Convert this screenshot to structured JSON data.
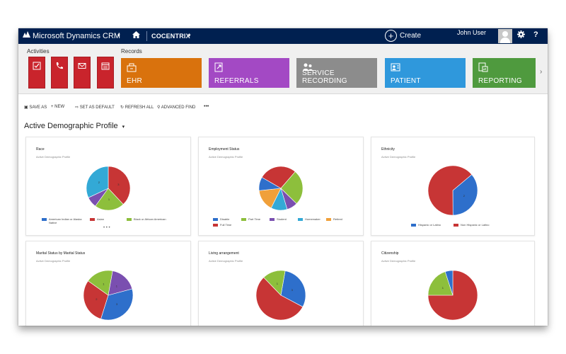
{
  "header": {
    "app_title": "Microsoft Dynamics CRM",
    "org": "COCENTRIX",
    "create_label": "Create",
    "user_name": "John User",
    "help_label": "?"
  },
  "nav": {
    "activities_label": "Activities",
    "records_label": "Records",
    "activity_icons": [
      "task-icon",
      "phone-icon",
      "email-icon",
      "appointment-icon"
    ],
    "tiles": [
      {
        "label": "EHR",
        "color": "#d9720d",
        "icon": "ehr-icon"
      },
      {
        "label": "REFERRALS",
        "color": "#a349c4",
        "icon": "referral-icon"
      },
      {
        "label": "SERVICE RECORDING",
        "color": "#8c8c8c",
        "icon": "service-recording-icon"
      },
      {
        "label": "PATIENT",
        "color": "#2f98dc",
        "icon": "patient-icon"
      },
      {
        "label": "REPORTING",
        "color": "#4f9a3e",
        "icon": "reporting-icon"
      }
    ]
  },
  "commands": {
    "save_as": "SAVE AS",
    "new": "NEW",
    "set_default": "SET AS DEFAULT",
    "refresh_all": "REFRESH ALL",
    "advanced_find": "ADVANCED FIND",
    "more": "•••"
  },
  "page": {
    "title": "Active Demographic Profile",
    "chevron": "▾"
  },
  "cards": [
    {
      "title": "Race",
      "subtitle": "Active Demographic Profile",
      "legend": [
        "American Indian or Alaska Native",
        "Asian",
        "Black or African American"
      ],
      "legend_colors": [
        "#2e6fcb",
        "#c73535",
        "#8dbf3c"
      ],
      "more": "• • •"
    },
    {
      "title": "Employment Status",
      "subtitle": "Active Demographic Profile",
      "legend": [
        "Disable",
        "Part Time",
        "Student",
        "Homemaker",
        "Retired",
        "Full Time"
      ],
      "legend_colors": [
        "#2e6fcb",
        "#8dbf3c",
        "#7a4fb0",
        "#33a9d6",
        "#f0a03a",
        "#c73535"
      ]
    },
    {
      "title": "Ethnicity",
      "subtitle": "Active Demographic Profile",
      "legend": [
        "Hispanic or Latino",
        "Non Hispanic or Latino"
      ],
      "legend_colors": [
        "#2e6fcb",
        "#c73535"
      ]
    },
    {
      "title": "Marital Status by Marital Status",
      "subtitle": "Active Demographic Profile"
    },
    {
      "title": "Living arrangement",
      "subtitle": "Active Demographic Profile"
    },
    {
      "title": "Citizenship",
      "subtitle": "Active Demographic Profile"
    }
  ],
  "chart_data": [
    {
      "type": "pie",
      "title": "Race",
      "categories": [
        "Asian",
        "Black or African American",
        "Purple category",
        "Cyan category"
      ],
      "values": [
        38,
        22,
        8,
        32
      ],
      "colors": [
        "#c73535",
        "#8dbf3c",
        "#7a4fb0",
        "#33a9d6"
      ],
      "data_labels": [
        "3",
        "1",
        "",
        "2"
      ]
    },
    {
      "type": "pie",
      "title": "Employment Status",
      "categories": [
        "Full Time",
        "Part Time",
        "Student",
        "Homemaker",
        "Retired",
        "Disable"
      ],
      "values": [
        28,
        26,
        8,
        12,
        16,
        10
      ],
      "colors": [
        "#c73535",
        "#8dbf3c",
        "#7a4fb0",
        "#33a9d6",
        "#f0a03a",
        "#2e6fcb"
      ],
      "data_labels": [
        "",
        "",
        "",
        "",
        "",
        ""
      ]
    },
    {
      "type": "pie",
      "title": "Ethnicity",
      "categories": [
        "Hispanic or Latino",
        "Non Hispanic or Latino"
      ],
      "values": [
        36,
        64
      ],
      "colors": [
        "#2e6fcb",
        "#c73535"
      ],
      "data_labels": [
        "2",
        ""
      ]
    },
    {
      "type": "pie",
      "title": "Marital Status by Marital Status",
      "categories": [
        "Blue",
        "Red",
        "Green",
        "Purple"
      ],
      "values": [
        34,
        30,
        18,
        18
      ],
      "colors": [
        "#2e6fcb",
        "#c73535",
        "#8dbf3c",
        "#7a4fb0"
      ],
      "data_labels": [
        "3",
        "2",
        "1",
        "1"
      ]
    },
    {
      "type": "pie",
      "title": "Living arrangement",
      "categories": [
        "Blue",
        "Red",
        "Green"
      ],
      "values": [
        30,
        55,
        15
      ],
      "colors": [
        "#2e6fcb",
        "#c73535",
        "#8dbf3c"
      ],
      "data_labels": [
        "3",
        "",
        "1"
      ]
    },
    {
      "type": "pie",
      "title": "Citizenship",
      "categories": [
        "Red",
        "Green",
        "Blue"
      ],
      "values": [
        75,
        20,
        5
      ],
      "colors": [
        "#c73535",
        "#8dbf3c",
        "#2e6fcb"
      ],
      "data_labels": [
        "",
        "1",
        ""
      ]
    }
  ]
}
